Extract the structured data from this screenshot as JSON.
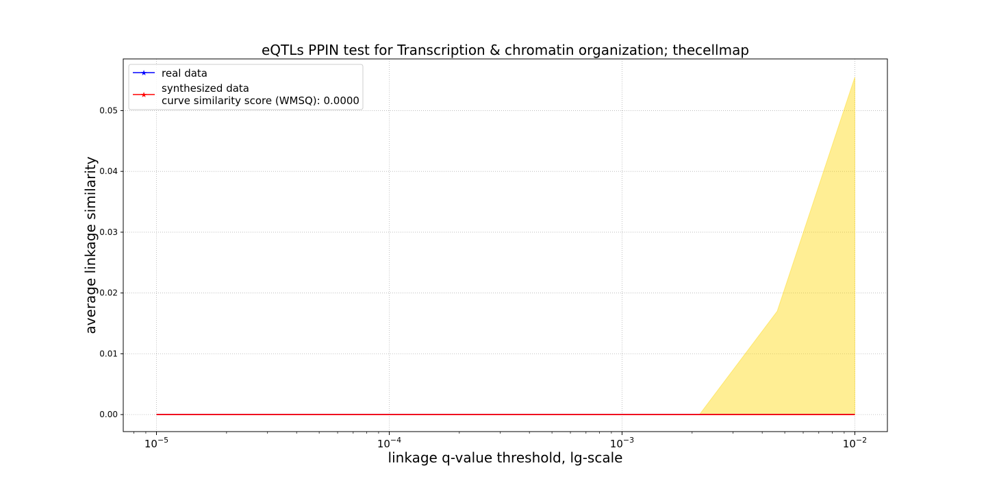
{
  "chart_data": {
    "type": "line",
    "title": "eQTLs PPIN test for Transcription & chromatin organization; thecellmap",
    "xlabel": "linkage q-value threshold, lg-scale",
    "ylabel": "average linkage similarity",
    "x_scale": "log10",
    "xlim": [
      7.2e-06,
      0.0138
    ],
    "ylim": [
      -0.0028,
      0.0585
    ],
    "x_ticks": [
      {
        "base": "10",
        "exp": "−5",
        "value": 1e-05
      },
      {
        "base": "10",
        "exp": "−4",
        "value": 0.0001
      },
      {
        "base": "10",
        "exp": "−3",
        "value": 0.001
      },
      {
        "base": "10",
        "exp": "−2",
        "value": 0.01
      }
    ],
    "y_ticks": [
      {
        "label": "0.00",
        "value": 0.0
      },
      {
        "label": "0.01",
        "value": 0.01
      },
      {
        "label": "0.02",
        "value": 0.02
      },
      {
        "label": "0.03",
        "value": 0.03
      },
      {
        "label": "0.04",
        "value": 0.04
      },
      {
        "label": "0.05",
        "value": 0.05
      }
    ],
    "grid": true,
    "legend_position": "top-left",
    "x": [
      1e-05,
      2.15e-05,
      4.64e-05,
      0.0001,
      0.000215,
      0.000464,
      0.001,
      0.00215,
      0.00464,
      0.01
    ],
    "series": [
      {
        "name": "real data",
        "color": "#0000ff",
        "marker": "star",
        "values": [
          0,
          0,
          0,
          0,
          0,
          0,
          0,
          0,
          0,
          0
        ]
      },
      {
        "name": "synthesized data",
        "color": "#ff0000",
        "marker": "star",
        "values": [
          0,
          0,
          0,
          0,
          0,
          0,
          0,
          0,
          0,
          0
        ]
      }
    ],
    "band": {
      "color": "#ffd700",
      "lower": [
        0,
        0,
        0,
        0,
        0,
        0,
        0,
        0,
        0,
        0
      ],
      "upper": [
        0,
        0,
        0,
        0,
        0,
        0,
        0,
        0,
        0.017,
        0.0555
      ]
    },
    "legend_note": "curve similarity score (WMSQ): 0.0000"
  }
}
